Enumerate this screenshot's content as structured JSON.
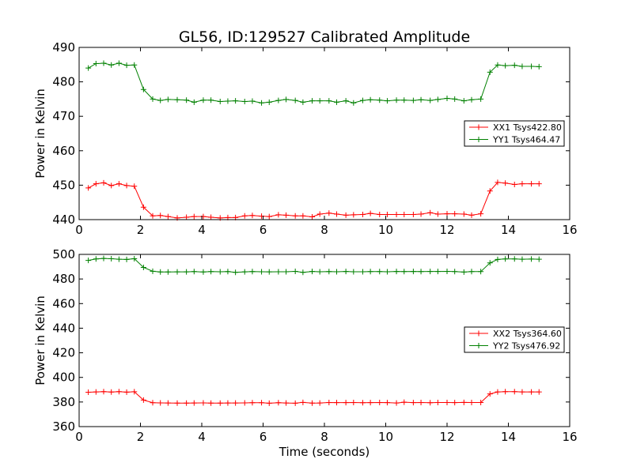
{
  "title": "GL56, ID:129527 Calibrated Amplitude",
  "chart_data": [
    {
      "type": "line",
      "xlabel": "",
      "ylabel": "Power in Kelvin",
      "xlim": [
        0,
        16
      ],
      "ylim": [
        440,
        490
      ],
      "xticks": [
        0,
        2,
        4,
        6,
        8,
        10,
        12,
        14,
        16
      ],
      "yticks": [
        440,
        450,
        460,
        470,
        480,
        490
      ],
      "legend_position": "right",
      "x": [
        0.3,
        0.55,
        0.8,
        1.05,
        1.3,
        1.55,
        1.8,
        2.1,
        2.4,
        2.65,
        2.9,
        3.2,
        3.5,
        3.75,
        4.05,
        4.3,
        4.6,
        4.85,
        5.1,
        5.4,
        5.65,
        5.95,
        6.2,
        6.5,
        6.75,
        7.05,
        7.3,
        7.6,
        7.85,
        8.15,
        8.4,
        8.7,
        8.95,
        9.25,
        9.5,
        9.8,
        10.05,
        10.35,
        10.6,
        10.9,
        11.15,
        11.45,
        11.7,
        12.0,
        12.25,
        12.55,
        12.8,
        13.1,
        13.4,
        13.65,
        13.9,
        14.2,
        14.45,
        14.75,
        15.0
      ],
      "series": [
        {
          "name": "XX1 Tsys422.80",
          "color": "#ff0000",
          "values": [
            449.2,
            450.4,
            450.7,
            449.9,
            450.4,
            449.9,
            449.7,
            443.6,
            441.1,
            441.2,
            440.9,
            440.5,
            440.7,
            440.9,
            440.9,
            440.7,
            440.5,
            440.6,
            440.6,
            441.1,
            441.2,
            441.0,
            440.9,
            441.4,
            441.3,
            441.1,
            441.1,
            440.8,
            441.6,
            441.9,
            441.6,
            441.3,
            441.4,
            441.5,
            441.8,
            441.5,
            441.5,
            441.5,
            441.5,
            441.5,
            441.6,
            442.0,
            441.6,
            441.7,
            441.7,
            441.6,
            441.3,
            441.7,
            448.3,
            450.8,
            450.6,
            450.2,
            450.4,
            450.4,
            450.4
          ]
        },
        {
          "name": "YY1 Tsys464.47",
          "color": "#008000",
          "values": [
            484.0,
            485.3,
            485.4,
            484.9,
            485.4,
            484.8,
            484.9,
            477.8,
            475.0,
            474.6,
            474.9,
            474.8,
            474.7,
            474.1,
            474.7,
            474.7,
            474.3,
            474.4,
            474.5,
            474.3,
            474.4,
            473.9,
            474.1,
            474.6,
            474.9,
            474.6,
            474.1,
            474.5,
            474.5,
            474.5,
            474.1,
            474.5,
            473.9,
            474.6,
            474.8,
            474.7,
            474.5,
            474.7,
            474.7,
            474.6,
            474.8,
            474.6,
            474.9,
            475.2,
            475.0,
            474.5,
            474.8,
            475.0,
            482.8,
            484.9,
            484.7,
            484.8,
            484.5,
            484.5,
            484.4
          ]
        }
      ]
    },
    {
      "type": "line",
      "xlabel": "Time (seconds)",
      "ylabel": "Power in Kelvin",
      "xlim": [
        0,
        16
      ],
      "ylim": [
        360,
        500
      ],
      "xticks": [
        0,
        2,
        4,
        6,
        8,
        10,
        12,
        14,
        16
      ],
      "yticks": [
        360,
        380,
        400,
        420,
        440,
        460,
        480,
        500
      ],
      "legend_position": "right",
      "x": [
        0.3,
        0.55,
        0.8,
        1.05,
        1.3,
        1.55,
        1.8,
        2.1,
        2.4,
        2.65,
        2.9,
        3.2,
        3.5,
        3.75,
        4.05,
        4.3,
        4.6,
        4.85,
        5.1,
        5.4,
        5.65,
        5.95,
        6.2,
        6.5,
        6.75,
        7.05,
        7.3,
        7.6,
        7.85,
        8.15,
        8.4,
        8.7,
        8.95,
        9.25,
        9.5,
        9.8,
        10.05,
        10.35,
        10.6,
        10.9,
        11.15,
        11.45,
        11.7,
        12.0,
        12.25,
        12.55,
        12.8,
        13.1,
        13.4,
        13.65,
        13.9,
        14.2,
        14.45,
        14.75,
        15.0
      ],
      "series": [
        {
          "name": "XX2 Tsys364.60",
          "color": "#ff0000",
          "values": [
            387.9,
            388.2,
            388.4,
            388.1,
            388.4,
            388.0,
            388.3,
            381.6,
            379.4,
            379.3,
            379.2,
            379.1,
            379.1,
            379.2,
            379.3,
            379.1,
            379.1,
            379.2,
            379.2,
            379.3,
            379.4,
            379.4,
            379.0,
            379.4,
            379.2,
            379.0,
            379.7,
            379.1,
            379.2,
            379.6,
            379.5,
            379.5,
            379.6,
            379.4,
            379.5,
            379.6,
            379.5,
            379.2,
            379.8,
            379.5,
            379.6,
            379.4,
            379.6,
            379.6,
            379.5,
            379.7,
            379.6,
            379.6,
            386.6,
            388.2,
            388.4,
            388.4,
            388.2,
            388.2,
            388.2
          ]
        },
        {
          "name": "YY2 Tsys476.92",
          "color": "#008000",
          "values": [
            495.1,
            496.3,
            496.7,
            496.5,
            496.1,
            495.9,
            496.5,
            489.4,
            486.3,
            485.7,
            485.7,
            485.8,
            485.8,
            486.0,
            485.7,
            486.0,
            485.9,
            486.0,
            485.4,
            485.8,
            486.0,
            485.9,
            485.8,
            485.9,
            485.9,
            486.2,
            485.4,
            486.1,
            485.9,
            486.0,
            485.9,
            486.1,
            485.9,
            485.9,
            486.0,
            486.0,
            485.9,
            486.1,
            486.0,
            486.1,
            486.0,
            486.1,
            486.1,
            486.2,
            486.0,
            485.6,
            486.0,
            486.0,
            493.1,
            495.9,
            496.3,
            496.3,
            496.1,
            496.2,
            496.1
          ]
        }
      ]
    }
  ]
}
